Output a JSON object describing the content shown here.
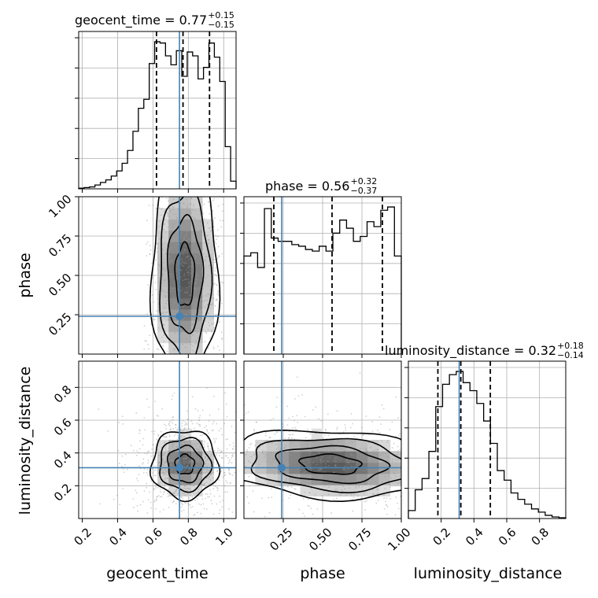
{
  "chart_data": {
    "type": "corner",
    "params": [
      "geocent_time",
      "phase",
      "luminosity_distance"
    ],
    "truths": {
      "geocent_time": 0.75,
      "phase": 0.24,
      "luminosity_distance": 0.31
    },
    "titles": [
      {
        "param": "geocent_time",
        "text": "geocent_time = 0.77",
        "sup": "+0.15",
        "sub": "−0.15"
      },
      {
        "param": "phase",
        "text": "phase = 0.56",
        "sup": "+0.32",
        "sub": "−0.37"
      },
      {
        "param": "luminosity_distance",
        "text": "luminosity_distance = 0.32",
        "sup": "+0.18",
        "sub": "−0.14"
      }
    ],
    "axis_labels": [
      "geocent_time",
      "phase",
      "luminosity_distance"
    ],
    "ranges": {
      "geocent_time": [
        0.18,
        1.07
      ],
      "phase": [
        0.0,
        1.0
      ],
      "luminosity_distance": [
        0.0,
        0.96
      ]
    },
    "ticks": {
      "geocent_time": [
        "0.2",
        "0.4",
        "0.6",
        "0.8",
        "1.0"
      ],
      "phase": [
        "0.25",
        "0.50",
        "0.75",
        "1.00"
      ],
      "luminosity_distance": [
        "0.2",
        "0.4",
        "0.6",
        "0.8"
      ]
    },
    "quantiles": {
      "geocent_time": [
        0.62,
        0.77,
        0.92
      ],
      "phase": [
        0.19,
        0.56,
        0.88
      ],
      "luminosity_distance": [
        0.18,
        0.32,
        0.5
      ]
    },
    "histograms": {
      "geocent_time": [
        0.5,
        1,
        1.5,
        3,
        5,
        7,
        10,
        14,
        20,
        30,
        45,
        63,
        70,
        98,
        115,
        114,
        104,
        97,
        108,
        88,
        107,
        104,
        86,
        95,
        114,
        103,
        84,
        33,
        6
      ],
      "phase": [
        60,
        62,
        53,
        89,
        71,
        69,
        69,
        67,
        66,
        64,
        63,
        66,
        63,
        74,
        82,
        77,
        69,
        72,
        81,
        78,
        88,
        90,
        60
      ],
      "luminosity_distance": [
        5,
        18,
        25,
        42,
        70,
        84,
        90,
        92,
        85,
        80,
        72,
        61,
        47,
        30,
        24,
        16,
        12,
        9,
        6,
        4,
        2,
        1,
        0.5
      ]
    },
    "grid": true,
    "grayscale_density": true,
    "contours": true
  }
}
